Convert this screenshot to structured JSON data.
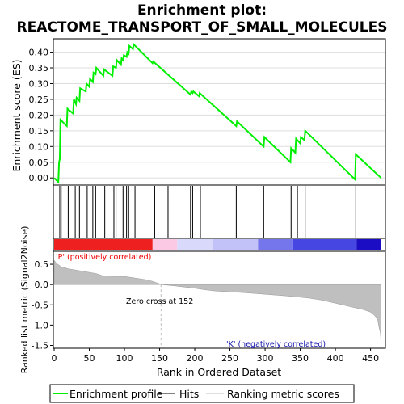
{
  "title_line1": "Enrichment plot:",
  "title_line2": "REACTOME_TRANSPORT_OF_SMALL_MOLECULES",
  "chart_data": {
    "type": "line",
    "es_panel": {
      "ylabel": "Enrichment score (ES)",
      "ylim": [
        -0.02,
        0.44
      ],
      "yticks": [
        "0.00",
        "0.05",
        "0.10",
        "0.15",
        "0.20",
        "0.25",
        "0.30",
        "0.35",
        "0.40"
      ],
      "grid": true,
      "series": [
        {
          "name": "Enrichment profile",
          "color": "#00ee00",
          "x": [
            0,
            6,
            7,
            8,
            9,
            18,
            19,
            27,
            28,
            31,
            32,
            36,
            37,
            45,
            46,
            50,
            51,
            55,
            56,
            59,
            60,
            70,
            71,
            83,
            84,
            88,
            89,
            95,
            96,
            98,
            99,
            103,
            104,
            106,
            107,
            112,
            113,
            140,
            141,
            194,
            195,
            197,
            198,
            206,
            207,
            259,
            260,
            298,
            299,
            336,
            337,
            343,
            344,
            350,
            351,
            356,
            357,
            428,
            429,
            465
          ],
          "y": [
            0.0,
            -0.013,
            0.05,
            0.06,
            0.185,
            0.165,
            0.22,
            0.205,
            0.25,
            0.235,
            0.255,
            0.245,
            0.285,
            0.275,
            0.3,
            0.29,
            0.315,
            0.305,
            0.335,
            0.33,
            0.35,
            0.325,
            0.345,
            0.325,
            0.355,
            0.35,
            0.375,
            0.36,
            0.38,
            0.375,
            0.39,
            0.385,
            0.4,
            0.395,
            0.42,
            0.41,
            0.425,
            0.365,
            0.37,
            0.265,
            0.275,
            0.27,
            0.275,
            0.26,
            0.27,
            0.165,
            0.18,
            0.1,
            0.13,
            0.05,
            0.095,
            0.08,
            0.125,
            0.11,
            0.13,
            0.12,
            0.15,
            -0.005,
            0.075,
            0.0
          ]
        }
      ]
    },
    "hits_panel": {
      "hits": [
        8,
        10,
        20,
        30,
        36,
        47,
        55,
        59,
        72,
        85,
        88,
        98,
        103,
        106,
        115,
        143,
        162,
        194,
        197,
        208,
        259,
        298,
        337,
        346,
        357,
        429
      ]
    },
    "heat_bar": {
      "segments": [
        {
          "x0": 0,
          "x1": 140,
          "color": "#ee2020"
        },
        {
          "x0": 140,
          "x1": 175,
          "color": "#fbc9e4"
        },
        {
          "x0": 175,
          "x1": 225,
          "color": "#d9d9fb"
        },
        {
          "x0": 225,
          "x1": 290,
          "color": "#c2c2f8"
        },
        {
          "x0": 290,
          "x1": 340,
          "color": "#7676ec"
        },
        {
          "x0": 340,
          "x1": 430,
          "color": "#4646e2"
        },
        {
          "x0": 430,
          "x1": 465,
          "color": "#1a0dc4"
        }
      ]
    },
    "metric_panel": {
      "ylabel": "Ranked list metric (Signal2Noise)",
      "xlabel": "Rank in Ordered Dataset",
      "ylim": [
        -1.55,
        0.8
      ],
      "yticks": [
        "0.5",
        "0.0",
        "-0.5",
        "-1.0",
        "-1.5"
      ],
      "xlim": [
        0,
        470
      ],
      "xticks": [
        "0",
        "50",
        "100",
        "150",
        "200",
        "250",
        "300",
        "350",
        "400",
        "450"
      ],
      "x": [
        0,
        3,
        10,
        20,
        40,
        60,
        70,
        90,
        100,
        115,
        130,
        140,
        150,
        152,
        170,
        185,
        200,
        215,
        230,
        250,
        270,
        300,
        330,
        360,
        380,
        400,
        420,
        440,
        450,
        455,
        460,
        462,
        464,
        465
      ],
      "y": [
        0.6,
        0.53,
        0.44,
        0.39,
        0.33,
        0.27,
        0.21,
        0.2,
        0.2,
        0.16,
        0.12,
        0.08,
        0.02,
        0.0,
        -0.03,
        -0.06,
        -0.09,
        -0.13,
        -0.16,
        -0.18,
        -0.2,
        -0.24,
        -0.28,
        -0.33,
        -0.38,
        -0.46,
        -0.54,
        -0.62,
        -0.68,
        -0.75,
        -0.85,
        -1.05,
        -1.2,
        -1.45
      ],
      "annotations": {
        "positive": "'P' (positively correlated)",
        "negative": "'K' (negatively correlated)",
        "zero_cross": "Zero cross at 152"
      },
      "zero_cross": 152
    },
    "legend": {
      "items": [
        {
          "label": "Enrichment profile",
          "color": "#00ee00"
        },
        {
          "label": "Hits",
          "color": "#000000"
        },
        {
          "label": "Ranking metric scores",
          "color": "#bfbfbf"
        }
      ]
    },
    "colors": {
      "positive_text": "#ee0000",
      "negative_text": "#1010aa",
      "metric_fill": "#bfbfbf"
    }
  }
}
